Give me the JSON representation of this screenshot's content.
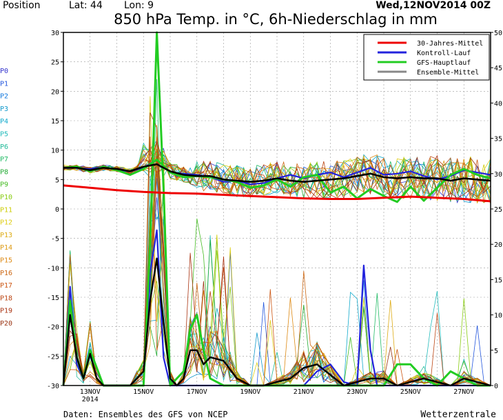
{
  "header": {
    "position_label": "Position",
    "lat_label": "Lat: 44",
    "lon_label": "Lon: 9",
    "date": "Wed,12NOV2014 00Z",
    "title": "850 hPa Temp. in °C, 6h-Niederschlag in mm"
  },
  "footer": {
    "source": "Daten: Ensembles des GFS von NCEP",
    "brand": "Wetterzentrale"
  },
  "members": [
    {
      "label": "P0",
      "color": "#3333cc"
    },
    {
      "label": "P1",
      "color": "#2255dd"
    },
    {
      "label": "P2",
      "color": "#1177dd"
    },
    {
      "label": "P3",
      "color": "#1199cc"
    },
    {
      "label": "P4",
      "color": "#11aacc"
    },
    {
      "label": "P5",
      "color": "#22bbbb"
    },
    {
      "label": "P6",
      "color": "#22bb99"
    },
    {
      "label": "P7",
      "color": "#22bb66"
    },
    {
      "label": "P8",
      "color": "#22aa33"
    },
    {
      "label": "P9",
      "color": "#44bb22"
    },
    {
      "label": "P10",
      "color": "#88cc11"
    },
    {
      "label": "P11",
      "color": "#cccc00"
    },
    {
      "label": "P12",
      "color": "#ddcc11"
    },
    {
      "label": "P13",
      "color": "#ddaa11"
    },
    {
      "label": "P14",
      "color": "#dd9911"
    },
    {
      "label": "P15",
      "color": "#dd8811"
    },
    {
      "label": "P16",
      "color": "#cc6611"
    },
    {
      "label": "P17",
      "color": "#cc5511"
    },
    {
      "label": "P18",
      "color": "#bb4411"
    },
    {
      "label": "P19",
      "color": "#aa3311"
    },
    {
      "label": "P20",
      "color": "#993311"
    }
  ],
  "chart_data": {
    "type": "line",
    "left_axis": {
      "min": -30,
      "max": 30,
      "ticks": [
        30,
        25,
        20,
        15,
        10,
        5,
        0,
        -5,
        -10,
        -15,
        -20,
        -25,
        -30
      ]
    },
    "right_axis": {
      "min": 0,
      "max": 50,
      "ticks": [
        50,
        45,
        40,
        35,
        30,
        25,
        20,
        15,
        10,
        5,
        0
      ]
    },
    "x_range_days": [
      12,
      28
    ],
    "x_tick_labels": [
      {
        "day": 13,
        "label": "13NOV",
        "sub": "2014"
      },
      {
        "day": 15,
        "label": "15NOV"
      },
      {
        "day": 17,
        "label": "17NOV"
      },
      {
        "day": 19,
        "label": "19NOV"
      },
      {
        "day": 21,
        "label": "21NOV"
      },
      {
        "day": 23,
        "label": "23NOV"
      },
      {
        "day": 25,
        "label": "25NOV"
      },
      {
        "day": 27,
        "label": "27NOV"
      }
    ],
    "legend": [
      {
        "name": "30-Jahres-Mittel",
        "color": "#ee0000"
      },
      {
        "name": "Kontroll-Lauf",
        "color": "#2222dd"
      },
      {
        "name": "GFS-Hauptlauf",
        "color": "#22cc22"
      },
      {
        "name": "Ensemble-Mittel",
        "color": "#888888"
      }
    ],
    "temp_series": {
      "climate_mean": {
        "color": "#ee0000",
        "day": [
          12,
          13,
          14,
          15,
          16,
          17,
          18,
          19,
          20,
          21,
          22,
          23,
          24,
          25,
          26,
          27,
          28
        ],
        "values": [
          4.0,
          3.6,
          3.2,
          2.9,
          2.7,
          2.6,
          2.4,
          2.2,
          2.0,
          1.8,
          1.7,
          1.7,
          1.9,
          2.1,
          1.9,
          1.7,
          1.3
        ]
      },
      "ensemble_mean": {
        "color": "#000000",
        "day": [
          12,
          12.5,
          13,
          13.5,
          14,
          14.5,
          15,
          15.5,
          16,
          16.5,
          17,
          17.5,
          18,
          18.5,
          19,
          19.5,
          20,
          20.5,
          21,
          21.5,
          22,
          22.5,
          23,
          23.5,
          24,
          24.5,
          25,
          25.5,
          26,
          26.5,
          27,
          27.5,
          28
        ],
        "values": [
          7,
          7,
          6.6,
          7,
          6.8,
          6.4,
          7.2,
          7.6,
          6.4,
          5.8,
          5.6,
          5.6,
          5,
          4.8,
          4.6,
          4.8,
          5.2,
          4.8,
          4.6,
          4.8,
          5,
          5.2,
          5.6,
          6,
          5.4,
          5.2,
          5.4,
          5.2,
          5.2,
          4.8,
          5.2,
          5.0,
          4.8
        ]
      },
      "control_run": {
        "color": "#2222dd",
        "day": [
          12,
          12.5,
          13,
          13.5,
          14,
          14.5,
          15,
          15.5,
          16,
          16.5,
          17,
          17.5,
          18,
          18.5,
          19,
          19.5,
          20,
          20.5,
          21,
          21.5,
          22,
          22.5,
          23,
          23.5,
          24,
          24.5,
          25,
          25.5,
          26,
          26.5,
          27,
          27.5,
          28
        ],
        "values": [
          7,
          7,
          6.8,
          7.2,
          6.6,
          6.4,
          7,
          8.4,
          6.2,
          6,
          5.8,
          5.4,
          4.6,
          4.8,
          4.2,
          4.4,
          5.2,
          5.8,
          5.2,
          5.8,
          6.2,
          5.4,
          6.2,
          7,
          5.8,
          6,
          6.4,
          5.6,
          5,
          5.6,
          6.6,
          6.2,
          5.8
        ]
      },
      "gfs_main": {
        "color": "#22cc22",
        "day": [
          12,
          12.5,
          13,
          13.5,
          14,
          14.5,
          15,
          15.5,
          16,
          16.5,
          17,
          17.5,
          18,
          18.5,
          19,
          19.5,
          20,
          20.5,
          21,
          21.5,
          22,
          22.5,
          23,
          23.5,
          24,
          24.5,
          25,
          25.5,
          26,
          26.5,
          27,
          27.5,
          28
        ],
        "values": [
          7,
          7.2,
          6.4,
          7.2,
          6.6,
          5.8,
          6.8,
          8.4,
          6.2,
          5.4,
          5.6,
          5.4,
          5,
          4.6,
          3.6,
          4,
          5,
          3.8,
          5.4,
          5.8,
          2.8,
          3.8,
          1.8,
          3.4,
          2.2,
          1.2,
          3.8,
          1.4,
          3.6,
          5.8,
          6.8,
          5.8,
          5.2
        ]
      }
    },
    "precip_series": {
      "ensemble_mean": {
        "color": "#000000",
        "day": [
          12,
          12.25,
          12.5,
          12.75,
          13,
          13.25,
          13.5,
          13.75,
          14,
          14.5,
          15,
          15.25,
          15.5,
          15.75,
          16,
          16.25,
          16.5,
          16.75,
          17,
          17.25,
          17.5,
          18,
          18.5,
          19,
          19.5,
          20,
          20.5,
          21,
          21.5,
          22,
          22.5,
          23,
          23.5,
          24,
          24.5,
          25,
          25.5,
          26,
          26.5,
          27,
          27.5,
          28
        ],
        "values": [
          0,
          10,
          4,
          1,
          4.5,
          1,
          0,
          0,
          0,
          0,
          2,
          12,
          18,
          9,
          1,
          0,
          1,
          5,
          5,
          3,
          4,
          3.5,
          1,
          0,
          0,
          0.5,
          1,
          2.5,
          3,
          1.5,
          0,
          0.5,
          1,
          1,
          0,
          0.5,
          1,
          0.5,
          0,
          1,
          0.5,
          0
        ]
      },
      "control_run": {
        "color": "#2222dd",
        "day": [
          12,
          12.25,
          12.5,
          12.75,
          13,
          13.5,
          14,
          15,
          15.25,
          15.5,
          15.75,
          16,
          17,
          18,
          19,
          20,
          21,
          21.5,
          22,
          22.5,
          23,
          23.25,
          23.5,
          23.75,
          24,
          25,
          26,
          27,
          28
        ],
        "values": [
          0,
          14,
          3,
          1,
          5,
          0,
          0,
          0,
          16,
          22,
          4,
          0,
          0,
          0,
          0,
          0,
          0,
          2,
          3,
          0.5,
          0,
          17,
          5,
          0,
          0,
          0,
          0,
          0,
          0
        ]
      },
      "gfs_main": {
        "color": "#22cc22",
        "day": [
          12,
          12.25,
          12.5,
          12.75,
          13,
          13.5,
          14,
          15,
          15.25,
          15.5,
          15.75,
          16,
          16.5,
          16.75,
          17,
          17.25,
          17.5,
          18,
          19,
          20,
          21,
          22,
          23,
          24,
          24.5,
          25,
          25.5,
          26,
          26.5,
          27,
          27.5,
          28
        ],
        "values": [
          0,
          12,
          4,
          1,
          5,
          0,
          0,
          0,
          20,
          50,
          28,
          0,
          2,
          8,
          10,
          5,
          1,
          0,
          0,
          0,
          0,
          0,
          0,
          0,
          3,
          3,
          1,
          0,
          2,
          1,
          0,
          0
        ]
      }
    }
  }
}
